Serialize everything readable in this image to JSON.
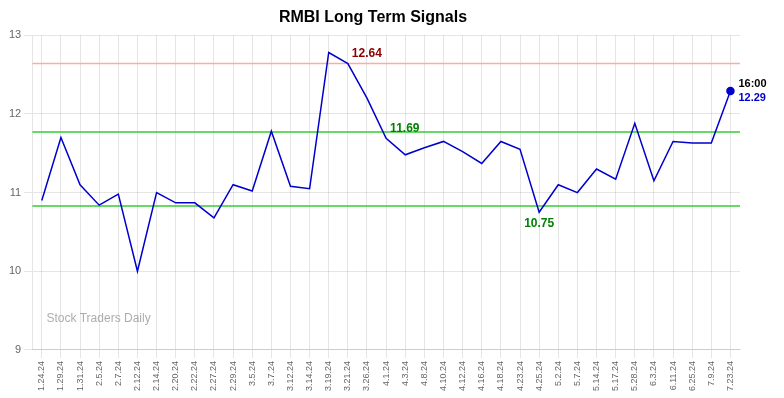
{
  "chart_data": {
    "type": "line",
    "title": "RMBI Long Term Signals",
    "categories": [
      "1.24.24",
      "1.29.24",
      "1.31.24",
      "2.5.24",
      "2.7.24",
      "2.12.24",
      "2.14.24",
      "2.20.24",
      "2.22.24",
      "2.27.24",
      "2.29.24",
      "3.5.24",
      "3.7.24",
      "3.12.24",
      "3.14.24",
      "3.19.24",
      "3.21.24",
      "3.26.24",
      "4.1.24",
      "4.3.24",
      "4.8.24",
      "4.10.24",
      "4.12.24",
      "4.16.24",
      "4.18.24",
      "4.23.24",
      "4.25.24",
      "5.2.24",
      "5.7.24",
      "5.14.24",
      "5.17.24",
      "5.28.24",
      "6.3.24",
      "6.11.24",
      "6.25.24",
      "7.9.24",
      "7.23.24"
    ],
    "values": [
      10.9,
      11.7,
      11.1,
      10.84,
      10.98,
      10.0,
      11.0,
      10.87,
      10.87,
      10.68,
      11.1,
      11.02,
      11.78,
      11.08,
      11.05,
      12.78,
      12.64,
      12.2,
      11.69,
      11.48,
      11.57,
      11.65,
      11.52,
      11.37,
      11.65,
      11.55,
      10.75,
      11.1,
      11.0,
      11.3,
      11.17,
      11.88,
      11.15,
      11.65,
      11.63,
      11.63,
      12.29
    ],
    "color": "#0000cc",
    "hlines": [
      {
        "value": 12.64,
        "color": "#ffaaaa"
      },
      {
        "value": 11.77,
        "color": "#33cc33"
      },
      {
        "value": 10.83,
        "color": "#33cc33"
      }
    ],
    "annotations": [
      {
        "text": "12.64",
        "index": 16,
        "color": "darkred"
      },
      {
        "text": "10.75",
        "index": 26,
        "color": "green"
      },
      {
        "text": "11.69",
        "index": 18,
        "color": "green"
      },
      {
        "text": "16:00",
        "index": 36,
        "color": "black"
      },
      {
        "text": "12.29",
        "index": 36,
        "color": "#0000cc"
      },
      {
        "text": "Stock Traders Daily",
        "color": "gray"
      }
    ],
    "ylim": [
      9,
      13
    ],
    "yticks": [
      9,
      10,
      11,
      12,
      13
    ],
    "grid": true
  }
}
